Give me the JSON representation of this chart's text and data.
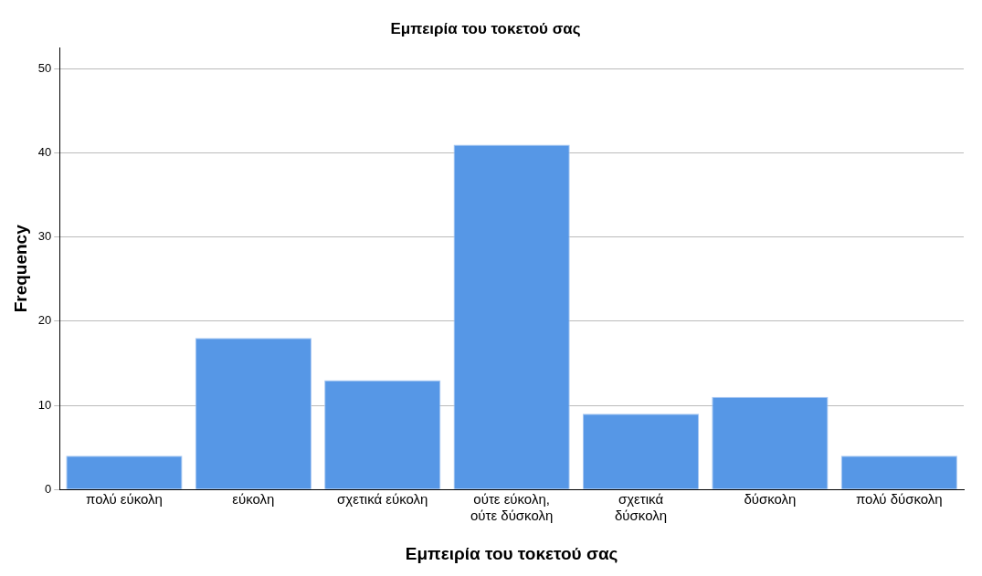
{
  "chart_data": {
    "type": "bar",
    "title": "Εμπειρία του τοκετού σας",
    "xlabel": "Εμπειρία του τοκετού σας",
    "ylabel": "Frequency",
    "categories": [
      "πολύ εύκολη",
      "εύκολη",
      "σχετικά εύκολη",
      "ούτε εύκολη, ούτε δύσκολη",
      "σχετικά δύσκολη",
      "δύσκολη",
      "πολύ δύσκολη"
    ],
    "values": [
      4,
      18,
      13,
      41,
      9,
      11,
      4
    ],
    "color": "#5697e6",
    "ylim": [
      0,
      52.5
    ],
    "yticks": [
      0,
      10,
      20,
      30,
      40,
      50
    ],
    "grid": "y",
    "legend": false
  }
}
